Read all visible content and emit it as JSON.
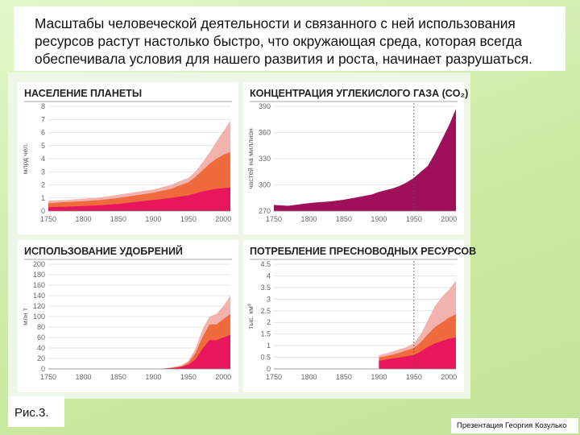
{
  "slide": {
    "title": "Масштабы человеческой деятельности и связанного с ней использования ресурсов растут настолько быстро, что окружающая среда, которая всегда обеспечивала условия для нашего развития и роста, начинает разрушаться.",
    "caption": "Рис.3.",
    "credit": "Презентация Георгия Козулько"
  },
  "colors": {
    "light": "#f2b3ae",
    "mid": "#ef6b3d",
    "dark": "#e8175d",
    "co2": "#a0105a"
  },
  "chart_data": [
    {
      "type": "area",
      "title": "НАСЕЛЕНИЕ ПЛАНЕТЫ",
      "ylabel": "млрд чел.",
      "ylim": [
        0,
        8
      ],
      "xlim": [
        1750,
        2010
      ],
      "x_ticks": [
        1750,
        1800,
        1850,
        1900,
        1950,
        2000
      ],
      "y_ticks": [
        0,
        1,
        2,
        3,
        4,
        5,
        6,
        7,
        8
      ],
      "x": [
        1750,
        1775,
        1800,
        1825,
        1850,
        1875,
        1900,
        1925,
        1950,
        1960,
        1970,
        1980,
        1990,
        2000,
        2010
      ],
      "series": [
        {
          "color_key": "dark",
          "values": [
            0.3,
            0.33,
            0.38,
            0.45,
            0.55,
            0.7,
            0.85,
            1.0,
            1.2,
            1.35,
            1.5,
            1.6,
            1.7,
            1.75,
            1.8
          ]
        },
        {
          "color_key": "mid",
          "values": [
            0.6,
            0.68,
            0.75,
            0.85,
            1.0,
            1.2,
            1.4,
            1.7,
            2.2,
            2.6,
            3.1,
            3.6,
            4.0,
            4.3,
            4.5
          ]
        },
        {
          "color_key": "light",
          "values": [
            0.8,
            0.85,
            0.95,
            1.05,
            1.25,
            1.45,
            1.65,
            2.0,
            2.55,
            3.0,
            3.7,
            4.45,
            5.3,
            6.1,
            6.9
          ]
        }
      ]
    },
    {
      "type": "area",
      "title": "КОНЦЕНТРАЦИЯ УГЛЕКИСЛОГО ГАЗА (CO₂)",
      "ylabel": "частей на миллион",
      "ylim": [
        270,
        390
      ],
      "xlim": [
        1750,
        2010
      ],
      "x_ticks": [
        1750,
        1800,
        1850,
        1900,
        1950,
        2000
      ],
      "y_ticks": [
        270,
        300,
        330,
        360,
        390
      ],
      "marker_x": 1950,
      "x": [
        1750,
        1770,
        1790,
        1810,
        1830,
        1850,
        1870,
        1890,
        1900,
        1910,
        1920,
        1930,
        1940,
        1950,
        1960,
        1970,
        1980,
        1990,
        2000,
        2010
      ],
      "series": [
        {
          "color_key": "co2",
          "values": [
            277,
            276,
            278,
            280,
            281,
            283,
            286,
            289,
            292,
            294,
            296,
            299,
            303,
            308,
            315,
            322,
            336,
            352,
            368,
            387
          ]
        }
      ]
    },
    {
      "type": "area",
      "title": "ИСПОЛЬЗОВАНИЕ УДОБРЕНИЙ",
      "ylabel": "млн т",
      "ylim": [
        0,
        200
      ],
      "xlim": [
        1750,
        2010
      ],
      "x_ticks": [
        1750,
        1800,
        1850,
        1900,
        1950,
        2000
      ],
      "y_ticks": [
        0,
        20,
        40,
        60,
        80,
        100,
        120,
        140,
        160,
        180,
        200
      ],
      "x": [
        1900,
        1910,
        1920,
        1930,
        1940,
        1950,
        1960,
        1970,
        1980,
        1990,
        2000,
        2010
      ],
      "series": [
        {
          "color_key": "dark",
          "values": [
            0,
            0,
            1,
            2,
            4,
            8,
            18,
            38,
            55,
            55,
            60,
            65
          ]
        },
        {
          "color_key": "mid",
          "values": [
            0,
            0,
            1,
            3,
            5,
            12,
            30,
            60,
            85,
            85,
            95,
            105
          ]
        },
        {
          "color_key": "light",
          "values": [
            0,
            0,
            2,
            4,
            7,
            15,
            38,
            75,
            100,
            105,
            120,
            140
          ]
        }
      ]
    },
    {
      "type": "area",
      "title": "ПОТРЕБЛЕНИЕ ПРЕСНОВОДНЫХ РЕСУРСОВ",
      "ylabel": "тыс. км³",
      "ylim": [
        0,
        4.5
      ],
      "xlim": [
        1750,
        2010
      ],
      "x_ticks": [
        1750,
        1800,
        1850,
        1900,
        1950,
        2000
      ],
      "y_ticks": [
        0,
        0.5,
        1,
        1.5,
        2,
        2.5,
        3,
        3.5,
        4,
        4.5
      ],
      "marker_x": 1950,
      "x": [
        1900,
        1910,
        1920,
        1930,
        1940,
        1950,
        1960,
        1970,
        1980,
        1990,
        2000,
        2010
      ],
      "series": [
        {
          "color_key": "dark",
          "values": [
            0.35,
            0.4,
            0.45,
            0.5,
            0.55,
            0.6,
            0.75,
            0.95,
            1.1,
            1.2,
            1.3,
            1.35
          ]
        },
        {
          "color_key": "mid",
          "values": [
            0.5,
            0.55,
            0.62,
            0.7,
            0.8,
            0.9,
            1.15,
            1.5,
            1.8,
            2.0,
            2.2,
            2.35
          ]
        },
        {
          "color_key": "light",
          "values": [
            0.6,
            0.66,
            0.75,
            0.85,
            0.95,
            1.1,
            1.5,
            2.1,
            2.7,
            3.1,
            3.4,
            3.8
          ]
        }
      ]
    }
  ]
}
